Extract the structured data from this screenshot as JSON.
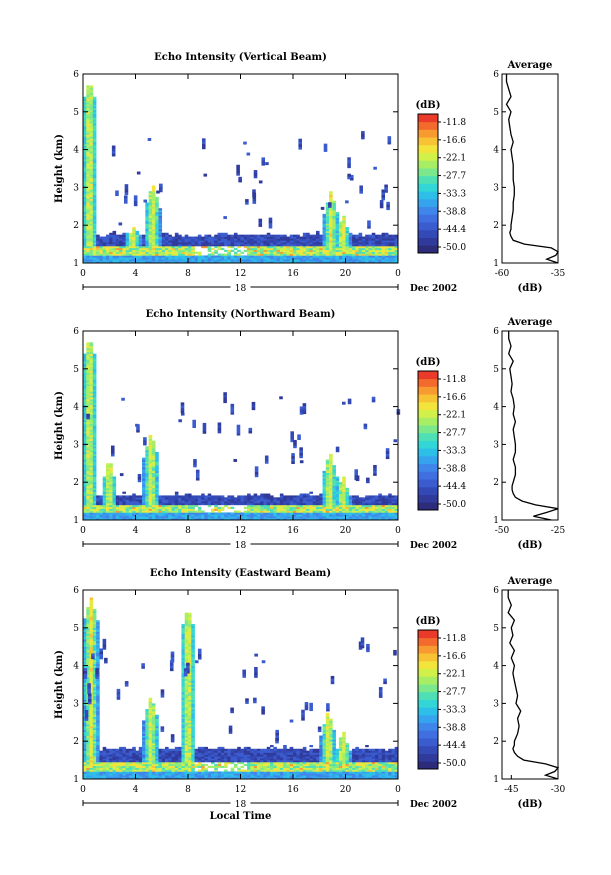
{
  "colorbar": {
    "unit": "(dB)",
    "labels": [
      "-11.8",
      "-16.6",
      "-22.1",
      "-27.7",
      "-33.3",
      "-38.8",
      "-44.4",
      "-50.0"
    ],
    "colors": [
      "#2c2c7a",
      "#303a9a",
      "#3349b6",
      "#3a5ccf",
      "#3f6fe0",
      "#3f86ea",
      "#36a3ee",
      "#2ebfe9",
      "#33d6d6",
      "#4ee0b4",
      "#7be88c",
      "#a8ee65",
      "#d2f04a",
      "#f3e43c",
      "#f8c235",
      "#f79a30",
      "#f26b2c",
      "#ea3a2a"
    ]
  },
  "date_label": "Dec 2002",
  "xlabel": "Local Time",
  "chart_data": [
    {
      "type": "heatmap",
      "title": "Echo Intensity (Vertical Beam)",
      "ylabel": "Height (km)",
      "xlim": [
        0,
        24
      ],
      "ylim": [
        1,
        6
      ],
      "xticks": [
        "0",
        "4",
        "8",
        "12",
        "16",
        "20",
        "0"
      ],
      "yticks": [
        "1",
        "2",
        "3",
        "4",
        "5",
        "6"
      ],
      "day_label": "18",
      "colorbar_unit": "(dB)",
      "colorbar_ticks": [
        -11.8,
        -16.6,
        -22.1,
        -27.7,
        -33.3,
        -38.8,
        -44.4,
        -50.0
      ],
      "features": {
        "layer_top_km": 1.75,
        "bright_band_km": [
          1.2,
          1.45
        ],
        "columns": [
          [
            0.5,
            5.8
          ],
          [
            5.3,
            3.1
          ],
          [
            18.9,
            2.9
          ],
          [
            19.8,
            2.3
          ],
          [
            3.8,
            2.0
          ]
        ]
      },
      "profile": {
        "title": "Average",
        "xlabel": "(dB)",
        "xticks": [
          "-60",
          "-35"
        ],
        "xlim": [
          -60,
          -35
        ],
        "ylim": [
          1,
          6
        ],
        "heights": [
          1.0,
          1.1,
          1.2,
          1.3,
          1.4,
          1.5,
          1.6,
          1.7,
          1.8,
          1.9,
          2.0,
          2.2,
          2.4,
          2.6,
          2.8,
          3.0,
          3.2,
          3.4,
          3.6,
          3.8,
          4.0,
          4.2,
          4.4,
          4.6,
          4.8,
          5.0,
          5.2,
          5.4,
          5.6,
          5.8,
          6.0
        ],
        "values": [
          -35,
          -40,
          -36,
          -35,
          -38,
          -50,
          -55,
          -56,
          -56.5,
          -56,
          -56,
          -55.5,
          -55,
          -55,
          -54.5,
          -54.5,
          -55,
          -55,
          -55,
          -55.5,
          -56,
          -55,
          -56,
          -56.5,
          -57,
          -56,
          -58,
          -56,
          -57,
          -58,
          -58
        ]
      }
    },
    {
      "type": "heatmap",
      "title": "Echo Intensity (Northward Beam)",
      "ylabel": "Height (km)",
      "xlim": [
        0,
        24
      ],
      "ylim": [
        1,
        6
      ],
      "xticks": [
        "0",
        "4",
        "8",
        "12",
        "16",
        "20",
        "0"
      ],
      "yticks": [
        "1",
        "2",
        "3",
        "4",
        "5",
        "6"
      ],
      "day_label": "18",
      "colorbar_unit": "(dB)",
      "colorbar_ticks": [
        -11.8,
        -16.6,
        -22.1,
        -27.7,
        -33.3,
        -38.8,
        -44.4,
        -50.0
      ],
      "features": {
        "layer_top_km": 1.65,
        "bright_band_km": [
          1.2,
          1.4
        ],
        "columns": [
          [
            0.5,
            5.8
          ],
          [
            5.2,
            3.3
          ],
          [
            18.8,
            2.8
          ],
          [
            19.8,
            2.2
          ],
          [
            2.0,
            2.6
          ]
        ]
      },
      "profile": {
        "title": "Average",
        "xlabel": "(dB)",
        "xticks": [
          "-50",
          "-25"
        ],
        "xlim": [
          -50,
          -25
        ],
        "ylim": [
          1,
          6
        ],
        "heights": [
          1.0,
          1.1,
          1.2,
          1.3,
          1.4,
          1.5,
          1.6,
          1.7,
          1.8,
          1.9,
          2.0,
          2.2,
          2.4,
          2.6,
          2.8,
          3.0,
          3.2,
          3.4,
          3.6,
          3.8,
          4.0,
          4.2,
          4.4,
          4.6,
          4.8,
          5.0,
          5.2,
          5.4,
          5.6,
          5.8,
          6.0
        ],
        "values": [
          -28,
          -36,
          -30,
          -25,
          -35,
          -41,
          -44,
          -45,
          -45.5,
          -45.5,
          -45,
          -44,
          -44,
          -45,
          -44,
          -44,
          -44.5,
          -45,
          -44,
          -45,
          -44.5,
          -45,
          -46,
          -45.5,
          -46,
          -46.5,
          -45,
          -47,
          -46,
          -47,
          -47
        ]
      }
    },
    {
      "type": "heatmap",
      "title": "Echo Intensity (Eastward Beam)",
      "ylabel": "Height (km)",
      "xlabel": "Local Time",
      "xlim": [
        0,
        24
      ],
      "ylim": [
        1,
        6
      ],
      "xticks": [
        "0",
        "4",
        "8",
        "12",
        "16",
        "20",
        "0"
      ],
      "yticks": [
        "1",
        "2",
        "3",
        "4",
        "5",
        "6"
      ],
      "day_label": "18",
      "colorbar_unit": "(dB)",
      "colorbar_ticks": [
        -11.8,
        -16.6,
        -22.1,
        -27.7,
        -33.3,
        -38.8,
        -44.4,
        -50.0
      ],
      "features": {
        "layer_top_km": 1.8,
        "bright_band_km": [
          1.2,
          1.45
        ],
        "columns": [
          [
            0.6,
            5.8
          ],
          [
            5.2,
            3.2
          ],
          [
            18.7,
            2.8
          ],
          [
            19.8,
            2.3
          ],
          [
            8.0,
            5.5
          ]
        ]
      },
      "profile": {
        "title": "Average",
        "xlabel": "(dB)",
        "xticks": [
          "-45",
          "-30"
        ],
        "xlim": [
          -48,
          -30
        ],
        "ylim": [
          1,
          6
        ],
        "heights": [
          1.0,
          1.1,
          1.2,
          1.3,
          1.4,
          1.5,
          1.6,
          1.7,
          1.8,
          1.9,
          2.0,
          2.2,
          2.4,
          2.6,
          2.8,
          3.0,
          3.2,
          3.4,
          3.6,
          3.8,
          4.0,
          4.2,
          4.4,
          4.6,
          4.8,
          5.0,
          5.2,
          5.4,
          5.6,
          5.8,
          6.0
        ],
        "values": [
          -30,
          -34,
          -31,
          -30,
          -34,
          -41,
          -43,
          -44,
          -44.5,
          -44,
          -44,
          -43,
          -42.5,
          -43,
          -42,
          -43.5,
          -43,
          -43.5,
          -44,
          -44.5,
          -44,
          -45,
          -44,
          -45.5,
          -44.5,
          -45,
          -44,
          -46,
          -45,
          -46,
          -46
        ]
      }
    }
  ]
}
